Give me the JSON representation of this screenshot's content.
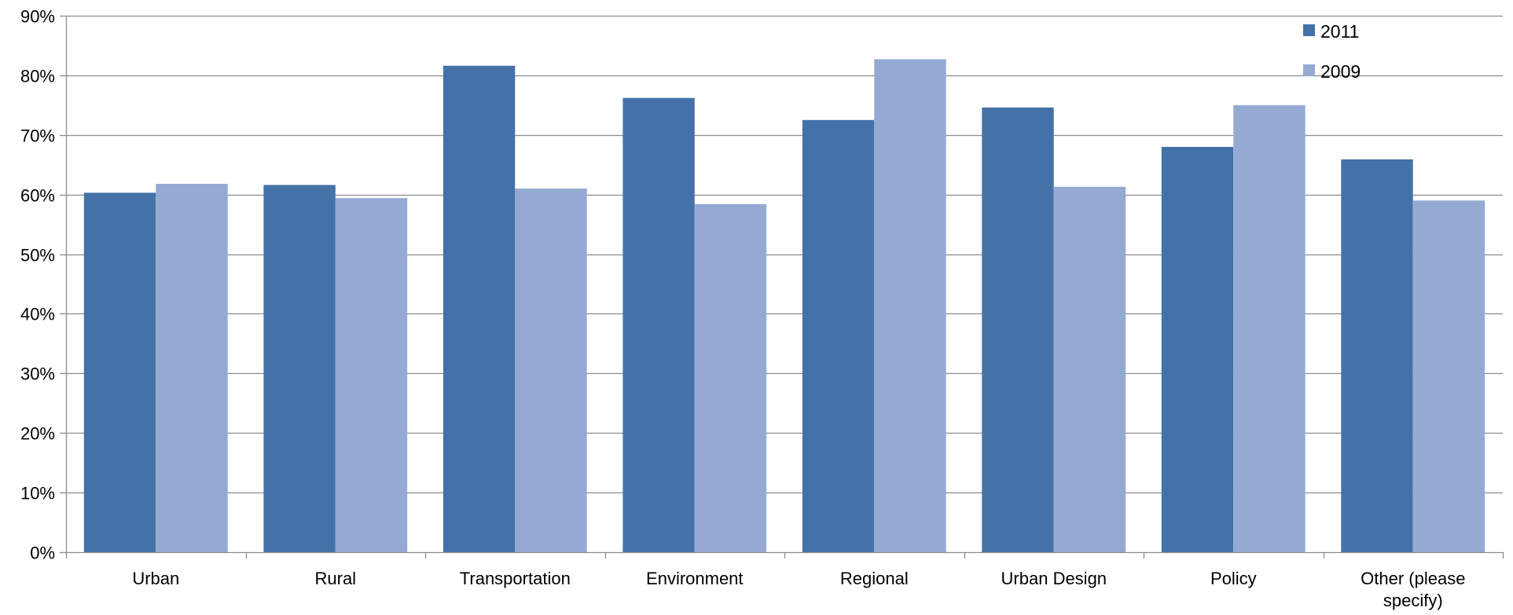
{
  "chart_data": {
    "type": "bar",
    "title": "",
    "xlabel": "",
    "ylabel": "",
    "ylim": [
      0,
      90
    ],
    "y_tick_step": 10,
    "y_tick_format": "percent",
    "grid": "horizontal",
    "legend_position": "top-right",
    "categories": [
      "Urban",
      "Rural",
      "Transportation",
      "Environment",
      "Regional",
      "Urban Design",
      "Policy",
      "Other (please specify)"
    ],
    "series": [
      {
        "name": "2011",
        "color": "#4472A8",
        "values": [
          60.3,
          61.6,
          81.6,
          76.2,
          72.5,
          74.6,
          68.0,
          65.9
        ]
      },
      {
        "name": "2009",
        "color": "#95AAD3",
        "values": [
          61.8,
          59.4,
          61.0,
          58.4,
          82.7,
          61.3,
          75.0,
          59.0
        ]
      }
    ]
  }
}
